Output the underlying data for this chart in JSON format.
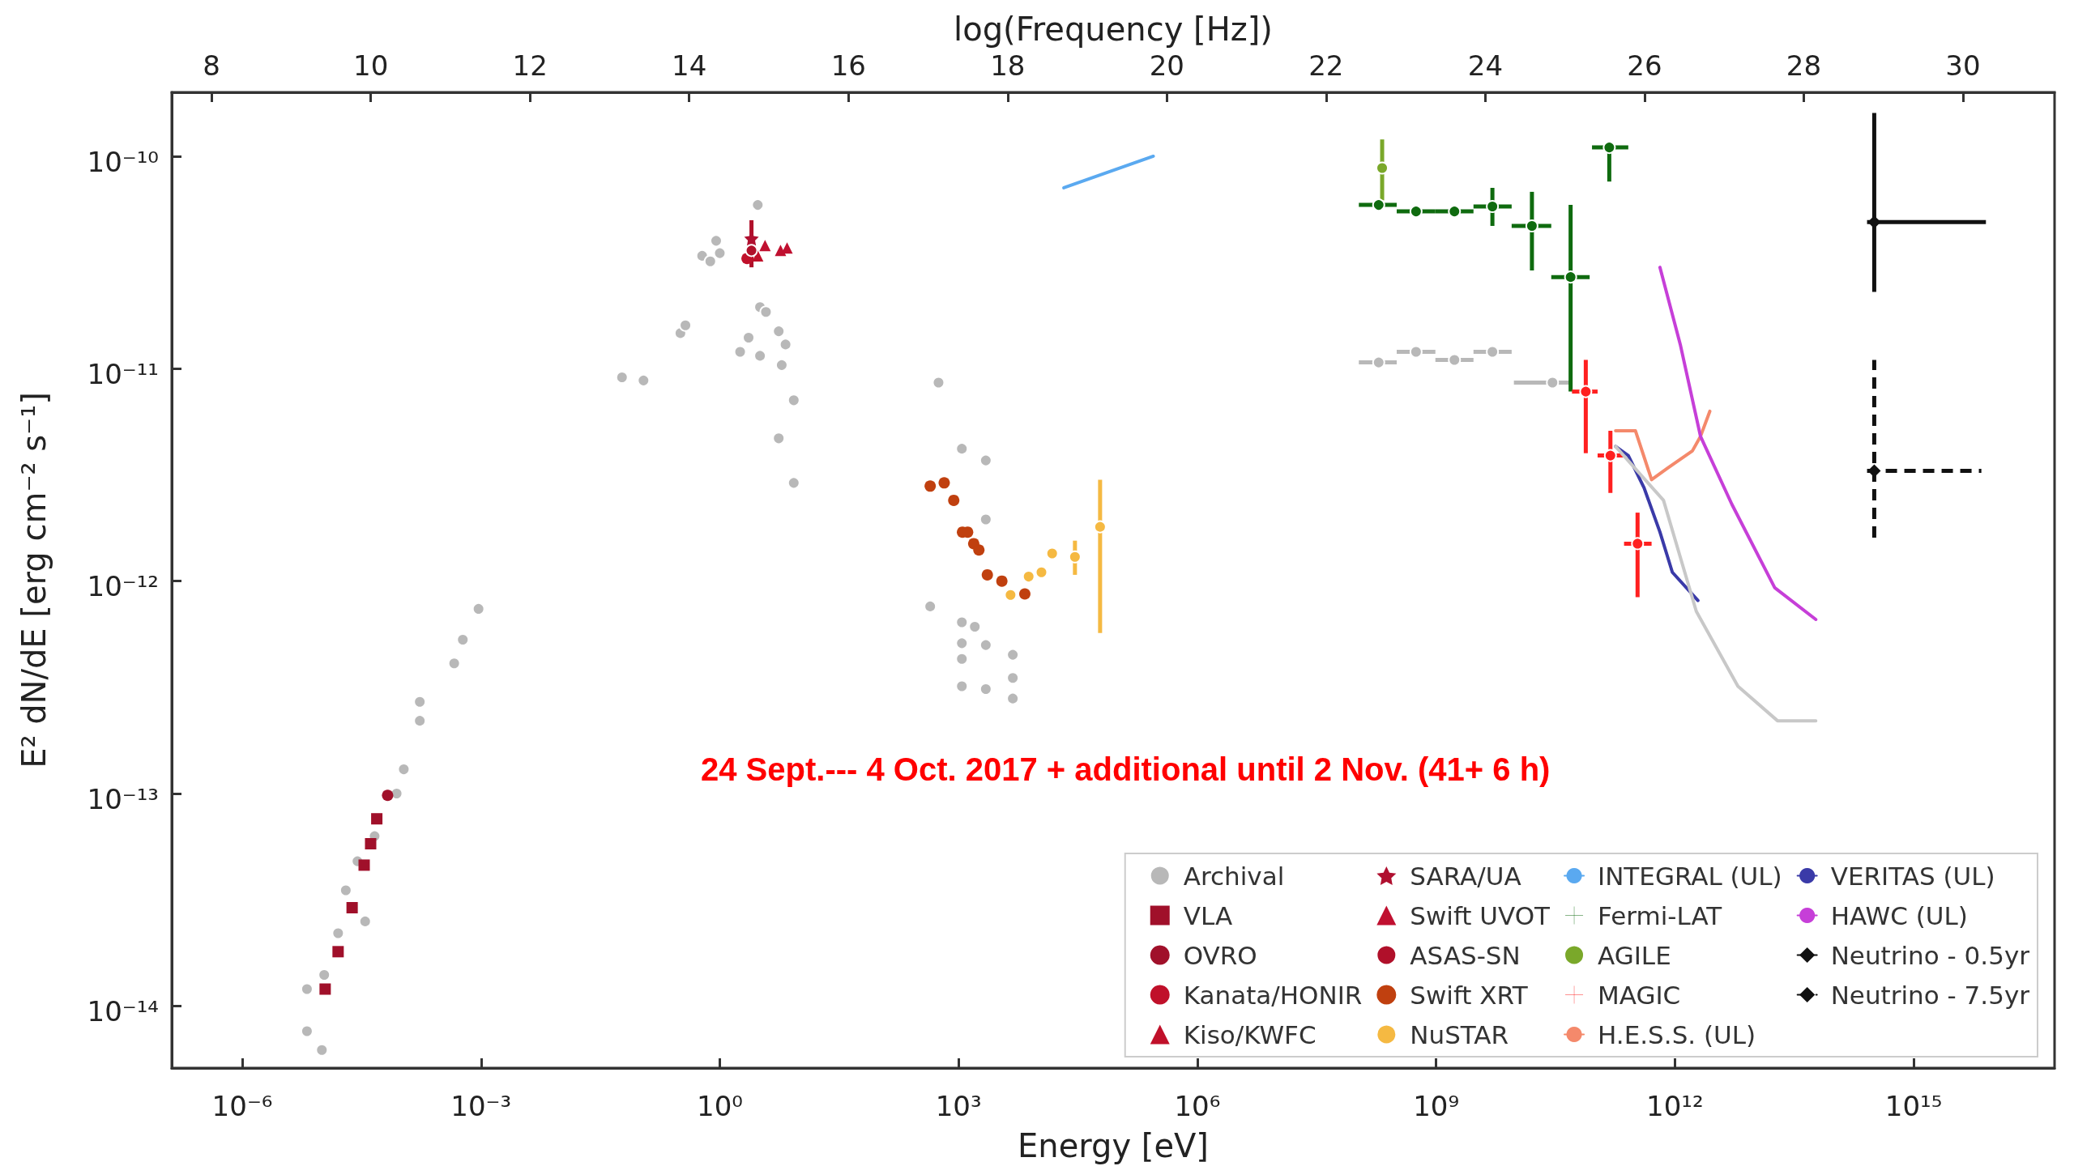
{
  "chart_data": {
    "type": "scatter",
    "xlabel": "Energy [eV]",
    "ylabel": "E² dN/dE [erg cm⁻² s⁻¹]",
    "x2label": "log(Frequency [Hz])",
    "annotations": [
      "24 Sept.--- 4 Oct. 2017 + additional until 2 Nov. (41+ 6 h)"
    ],
    "log": "xy",
    "legend": "bottom right",
    "xlim": [
      1.3e-07,
      5.9e+16
    ],
    "xticks": [
      {
        "value": 1e-06,
        "label": "10⁻⁶"
      },
      {
        "value": 0.001,
        "label": "10⁻³"
      },
      {
        "value": 1,
        "label": "10⁰"
      },
      {
        "value": 1000.0,
        "label": "10³"
      },
      {
        "value": 1000000.0,
        "label": "10⁶"
      },
      {
        "value": 1000000000.0,
        "label": "10⁹"
      },
      {
        "value": 1000000000000.0,
        "label": "10¹²"
      },
      {
        "value": 1000000000000000.0,
        "label": "10¹⁵"
      }
    ],
    "ylim": [
      5.1e-15,
      2e-10
    ],
    "yticks": [
      {
        "value": 1e-14,
        "label": "10⁻¹⁴"
      },
      {
        "value": 1e-13,
        "label": "10⁻¹³"
      },
      {
        "value": 1e-12,
        "label": "10⁻¹²"
      },
      {
        "value": 1e-11,
        "label": "10⁻¹¹"
      },
      {
        "value": 1e-10,
        "label": "10⁻¹⁰"
      }
    ],
    "x2lim": [
      7.5,
      31.15
    ],
    "x2ticks": [
      8,
      10,
      12,
      14,
      16,
      18,
      20,
      22,
      24,
      26,
      28,
      30
    ],
    "series": [
      {
        "name": "Archival",
        "color": "#b8b8b8",
        "marker": "circle",
        "x": [
          6.5e-06,
          1e-05,
          6.5e-06,
          1.07e-05,
          1.6e-05,
          2e-05,
          3.5e-05,
          2.8e-05,
          4.6e-05,
          8.7e-05,
          0.000107,
          0.00017,
          0.00017,
          0.00046,
          0.00059,
          0.00093,
          0.059,
          0.11,
          0.32,
          0.37,
          0.6,
          0.76,
          0.9,
          1.0,
          1.8,
          2.3,
          3.0,
          3.2,
          3.2,
          3.8,
          5.5,
          6.7,
          6.0,
          8.5,
          5.5,
          8.5,
          440,
          560,
          1100,
          1100,
          1100,
          1100,
          1100,
          1600,
          2200,
          2200,
          2200,
          2200,
          4800,
          4800,
          4800,
          190000000.0,
          560000000.0,
          1700000000.0,
          5100000000.0,
          29000000000.0
        ],
        "values": [
          7.6e-15,
          6.2e-15,
          1.2e-14,
          1.4e-14,
          2.2e-14,
          3.5e-14,
          2.5e-14,
          4.8e-14,
          6.3e-14,
          1e-13,
          1.3e-13,
          2.2e-13,
          2.7e-13,
          4.1e-13,
          5.3e-13,
          7.4e-13,
          9.1e-12,
          8.8e-12,
          1.47e-11,
          1.6e-11,
          3.4e-11,
          3.2e-11,
          4e-11,
          3.5e-11,
          1.2e-11,
          1.4e-11,
          5.9e-11,
          1.95e-11,
          1.15e-11,
          1.85e-11,
          1.5e-11,
          1.3e-11,
          1.04e-11,
          7.1e-12,
          4.7e-12,
          2.9e-12,
          7.6e-13,
          8.6e-12,
          4.2e-12,
          6.4e-13,
          5.1e-13,
          4.3e-13,
          3.2e-13,
          6.1e-13,
          3.7e-12,
          1.95e-12,
          5e-13,
          3.1e-13,
          4.5e-13,
          3.5e-13,
          2.8e-13,
          1.07e-11,
          1.2e-11,
          1.1e-11,
          1.2e-11,
          8.6e-12
        ],
        "xerrors": [
          null,
          null,
          null,
          null,
          null,
          null,
          null,
          null,
          null,
          null,
          null,
          null,
          null,
          null,
          null,
          null,
          null,
          null,
          null,
          null,
          null,
          null,
          null,
          null,
          null,
          null,
          null,
          null,
          null,
          null,
          null,
          null,
          null,
          null,
          null,
          null,
          null,
          null,
          null,
          null,
          null,
          null,
          null,
          null,
          null,
          null,
          null,
          null,
          null,
          null,
          null,
          [
            107000000.0,
            320000000.0
          ],
          [
            320000000.0,
            980000000.0
          ],
          [
            980000000.0,
            2950000000.0
          ],
          [
            2950000000.0,
            8900000000.0
          ],
          [
            9500000000.0,
            49000000000.0
          ]
        ]
      },
      {
        "name": "VLA",
        "color": "#a0102a",
        "marker": "square",
        "x": [
          1.1e-05,
          1.6e-05,
          2.4e-05,
          3.4e-05,
          4.1e-05,
          4.9e-05
        ],
        "values": [
          1.2e-14,
          1.8e-14,
          2.9e-14,
          4.6e-14,
          5.8e-14,
          7.6e-14
        ]
      },
      {
        "name": "OVRO",
        "color": "#a0102a",
        "marker": "circle",
        "x": [
          6.7e-05
        ],
        "values": [
          9.8e-14
        ]
      },
      {
        "name": "Kanata/HONIR",
        "color": "#c0102a",
        "marker": "circle",
        "x": [
          2.2
        ],
        "values": [
          3.3e-11
        ]
      },
      {
        "name": "Kiso/KWFC",
        "color": "#c0102a",
        "marker": "triangle",
        "x": [
          3.0
        ],
        "values": [
          3.4e-11
        ]
      },
      {
        "name": "SARA/UA",
        "color": "#b01030",
        "marker": "star",
        "x": [
          2.5
        ],
        "values": [
          4.1e-11
        ]
      },
      {
        "name": "Swift UVOT",
        "color": "#c01030",
        "marker": "triangle",
        "x": [
          3.7,
          5.8,
          7.0
        ],
        "values": [
          3.8e-11,
          3.6e-11,
          3.7e-11
        ]
      },
      {
        "name": "ASAS-SN",
        "color": "#b0102a",
        "marker": "circle",
        "x": [
          2.5
        ],
        "values": [
          3.6e-11
        ],
        "errors": [
          [
            3e-11,
            5e-11
          ]
        ]
      },
      {
        "name": "Swift XRT",
        "color": "#c0400f",
        "marker": "circle",
        "x": [
          440,
          660,
          870,
          1120,
          1300,
          1550,
          1800,
          2300,
          3500,
          6800
        ],
        "values": [
          2.8e-12,
          2.9e-12,
          2.4e-12,
          1.7e-12,
          1.7e-12,
          1.5e-12,
          1.4e-12,
          1.07e-12,
          1e-12,
          8.7e-13
        ]
      },
      {
        "name": "NuSTAR",
        "color": "#f5b942",
        "marker": "circle",
        "x": [
          4500,
          7600,
          11000,
          15000,
          29000,
          60000
        ],
        "values": [
          8.6e-13,
          1.05e-12,
          1.1e-12,
          1.35e-12,
          1.3e-12,
          1.8e-12
        ],
        "errors": [
          null,
          null,
          null,
          null,
          [
            1.07e-12,
            1.55e-12
          ],
          [
            5.7e-13,
            3e-12
          ]
        ]
      },
      {
        "name": "INTEGRAL (UL)",
        "type": "line",
        "color": "#5aa9f0",
        "marker": "none",
        "x": [
          21000.0,
          280000.0
        ],
        "values": [
          7.1e-11,
          1e-10
        ]
      },
      {
        "name": "Fermi-LAT",
        "color": "#0f6b0f",
        "marker": "circle",
        "x": [
          190000000.0,
          560000000.0,
          1700000000.0,
          5100000000.0,
          16000000000.0,
          49000000000.0,
          150000000000.0
        ],
        "values": [
          5.9e-11,
          5.5e-11,
          5.5e-11,
          5.8e-11,
          4.7e-11,
          2.7e-11,
          1.1e-10
        ],
        "errors": [
          [
            5.6e-11,
            6.1e-11
          ],
          [
            5.2e-11,
            5.8e-11
          ],
          [
            5.2e-11,
            5.8e-11
          ],
          [
            4.7e-11,
            7.1e-11
          ],
          [
            2.9e-11,
            6.8e-11
          ],
          [
            7.8e-12,
            5.9e-11
          ],
          [
            7.6e-11,
            1.1e-10
          ]
        ],
        "xerrors": [
          [
            107000000.0,
            320000000.0
          ],
          [
            320000000.0,
            980000000.0
          ],
          [
            980000000.0,
            2950000000.0
          ],
          [
            2950000000.0,
            8900000000.0
          ],
          [
            8900000000.0,
            28000000000.0
          ],
          [
            28000000000.0,
            85000000000.0
          ],
          [
            91000000000.0,
            260000000000.0
          ]
        ]
      },
      {
        "name": "AGILE",
        "color": "#7aa82a",
        "marker": "circle",
        "x": [
          210000000.0
        ],
        "values": [
          8.8e-11
        ],
        "errors": [
          [
            6.2e-11,
            1.2e-10
          ]
        ]
      },
      {
        "name": "MAGIC",
        "color": "#ff2020",
        "marker": "circle",
        "x": [
          76000000000.0,
          155000000000.0,
          340000000000.0
        ],
        "values": [
          7.8e-12,
          3.9e-12,
          1.5e-12
        ],
        "errors": [
          [
            4e-12,
            1.1e-11
          ],
          [
            2.6e-12,
            5.1e-12
          ],
          [
            8.4e-13,
            2.1e-12
          ]
        ],
        "xerrors": [
          [
            51000000000.0,
            107000000000.0
          ],
          [
            107000000000.0,
            230000000000.0
          ],
          [
            230000000000.0,
            510000000000.0
          ]
        ]
      },
      {
        "name": "H.E.S.S. (UL)",
        "type": "line",
        "color": "#f4896b",
        "marker": "none",
        "x": [
          180000000000.0,
          320000000000.0,
          510000000000.0,
          810000000000.0,
          1660000000000.0,
          2100000000000.0,
          2750000000000.0
        ],
        "values": [
          5.1e-12,
          5.1e-12,
          3e-12,
          3.4e-12,
          4.1e-12,
          4.8e-12,
          6.3e-12
        ]
      },
      {
        "name": "VERITAS (UL)",
        "type": "line",
        "color": "#3a3aa8",
        "marker": "none",
        "x": [
          180000000000.0,
          260000000000.0,
          410000000000.0,
          650000000000.0,
          930000000000.0,
          1950000000000.0
        ],
        "values": [
          4.3e-12,
          3.9e-12,
          2.75e-12,
          1.7e-12,
          1.1e-12,
          8.1e-13
        ]
      },
      {
        "name": "HAWC (UL)",
        "type": "line",
        "color": "#c63fd8",
        "marker": "none",
        "x": [
          650000000000.0,
          1170000000000.0,
          2100000000000.0,
          5200000000000.0,
          18000000000000.0,
          59000000000000.0
        ],
        "values": [
          3e-11,
          1.3e-11,
          4.8e-12,
          2.3e-12,
          9.3e-13,
          6.6e-13
        ]
      },
      {
        "name": "Neutrino - 0.5yr",
        "type": "line",
        "color": "#111111",
        "marker": "diamond",
        "line_style": "solid",
        "x": [
          320000000000000.0
        ],
        "values": [
          4.9e-11
        ],
        "errors": [
          [
            2.3e-11,
            1.6e-10
          ]
        ],
        "xerrors": [
          [
            260000000000000.0,
            8100000000000000.0
          ]
        ]
      },
      {
        "name": "Neutrino - 7.5yr",
        "type": "line",
        "color": "#111111",
        "marker": "diamond",
        "line_style": "dashed",
        "x": [
          320000000000000.0
        ],
        "values": [
          3.3e-12
        ],
        "errors": [
          [
            1.6e-12,
            1.1e-11
          ]
        ],
        "xerrors": [
          [
            260000000000000.0,
            7100000000000000.0
          ]
        ]
      },
      {
        "type": "line",
        "color": "#c8c8c8",
        "marker": "none",
        "x": [
          180000000000.0,
          720000000000.0,
          1860000000000.0,
          6200000000000.0,
          19500000000000.0,
          59000000000000.0
        ],
        "values": [
          4.3e-12,
          2.4e-12,
          7.2e-13,
          3.2e-13,
          2.2e-13,
          2.2e-13
        ]
      }
    ]
  }
}
